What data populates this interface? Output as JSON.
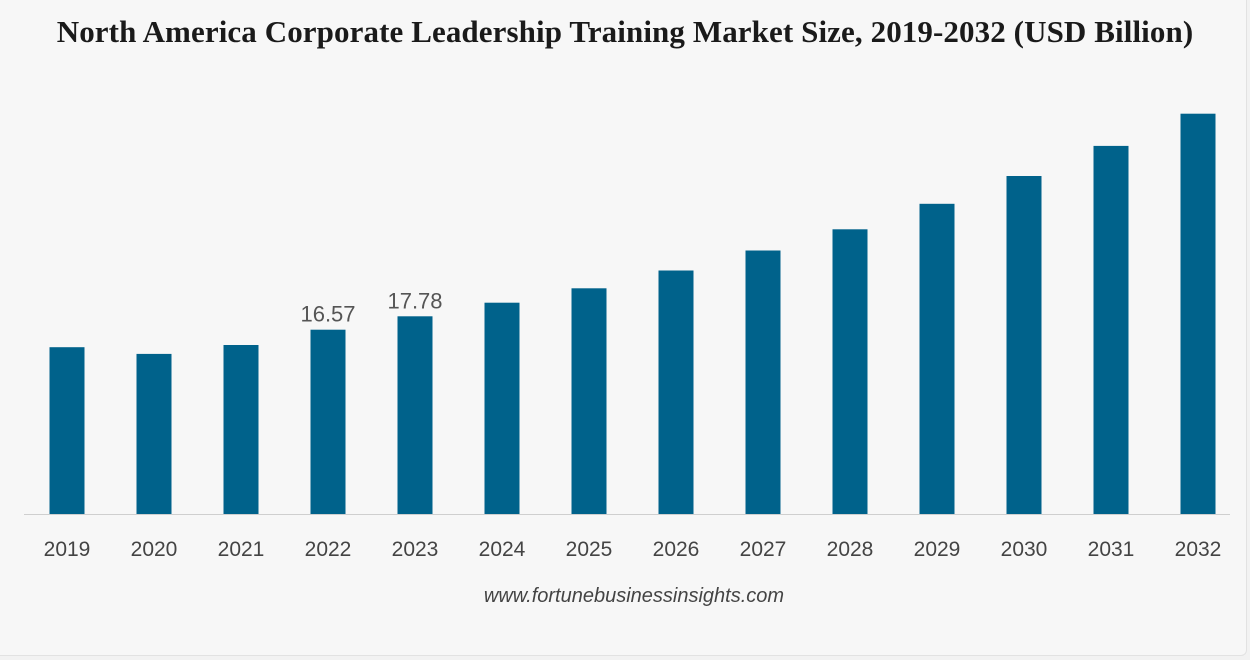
{
  "chart_data": {
    "type": "bar",
    "title": "North America Corporate Leadership Training Market Size, 2019-2032 (USD Billion)",
    "xlabel": "",
    "ylabel": "",
    "categories": [
      "2019",
      "2020",
      "2021",
      "2022",
      "2023",
      "2024",
      "2025",
      "2026",
      "2027",
      "2028",
      "2029",
      "2030",
      "2031",
      "2032"
    ],
    "values": [
      15.0,
      14.4,
      15.2,
      16.57,
      17.78,
      19.0,
      20.3,
      21.9,
      23.7,
      25.6,
      27.9,
      30.4,
      33.1,
      36.0
    ],
    "data_labels": {
      "2022": "16.57",
      "2023": "17.78"
    },
    "ylim": [
      0,
      37.5
    ],
    "grid": false,
    "legend": "none",
    "bar_color": "#00628b"
  },
  "source_text": "www.fortunebusinessinsights.com"
}
